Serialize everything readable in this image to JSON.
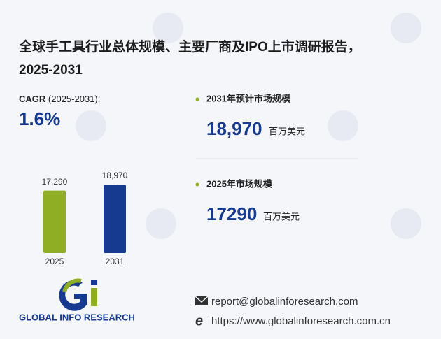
{
  "title_lines": [
    "全球手工具行业总体规模、主要厂商及IPO上市调研报告，",
    "2025-2031"
  ],
  "cagr": {
    "label": "CAGR",
    "period": "(2025-2031):",
    "value": "1.6%"
  },
  "stats": [
    {
      "label": "2031年预计市场规模",
      "value": "18,970",
      "unit": "百万美元"
    },
    {
      "label": "2025年市场规模",
      "value": "17290",
      "unit": "百万美元"
    }
  ],
  "chart_data": {
    "type": "bar",
    "categories": [
      "2025",
      "2031"
    ],
    "series": [
      {
        "values": [
          17290,
          18970
        ],
        "value_labels": [
          "17,290",
          "18,970"
        ],
        "colors": [
          "#8fae23",
          "#163a8f"
        ]
      }
    ]
  },
  "logo": {
    "text": "GLOBAL INFO RESEARCH"
  },
  "contact": {
    "email": "report@globalinforesearch.com",
    "website": "https://www.globalinforesearch.com.cn"
  }
}
